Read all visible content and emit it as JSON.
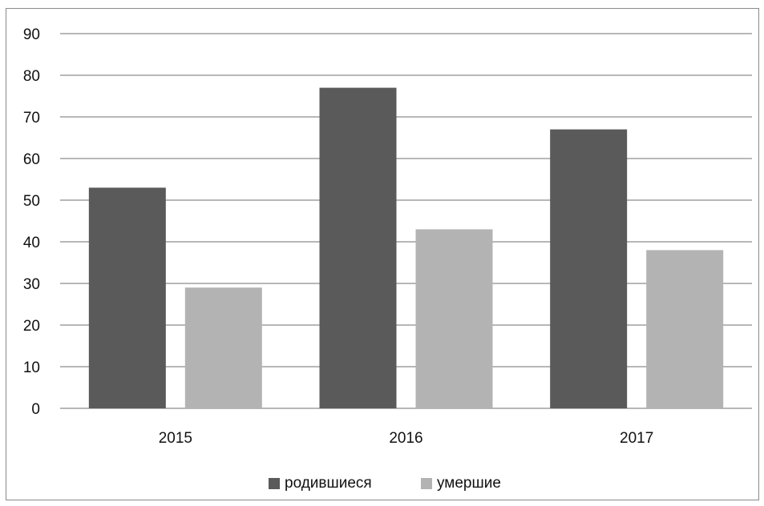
{
  "chart_data": {
    "type": "bar",
    "categories": [
      "2015",
      "2016",
      "2017"
    ],
    "series": [
      {
        "name": "родившиеся",
        "values": [
          53,
          77,
          67
        ],
        "color": "#5a5a5a"
      },
      {
        "name": "умершие",
        "values": [
          29,
          43,
          38
        ],
        "color": "#b3b3b3"
      }
    ],
    "y_ticks": [
      "0",
      "10",
      "20",
      "30",
      "40",
      "50",
      "60",
      "70",
      "80",
      "90"
    ],
    "ylim": [
      0,
      90
    ],
    "grid": true,
    "legend_position": "bottom",
    "title": "",
    "xlabel": "",
    "ylabel": ""
  }
}
